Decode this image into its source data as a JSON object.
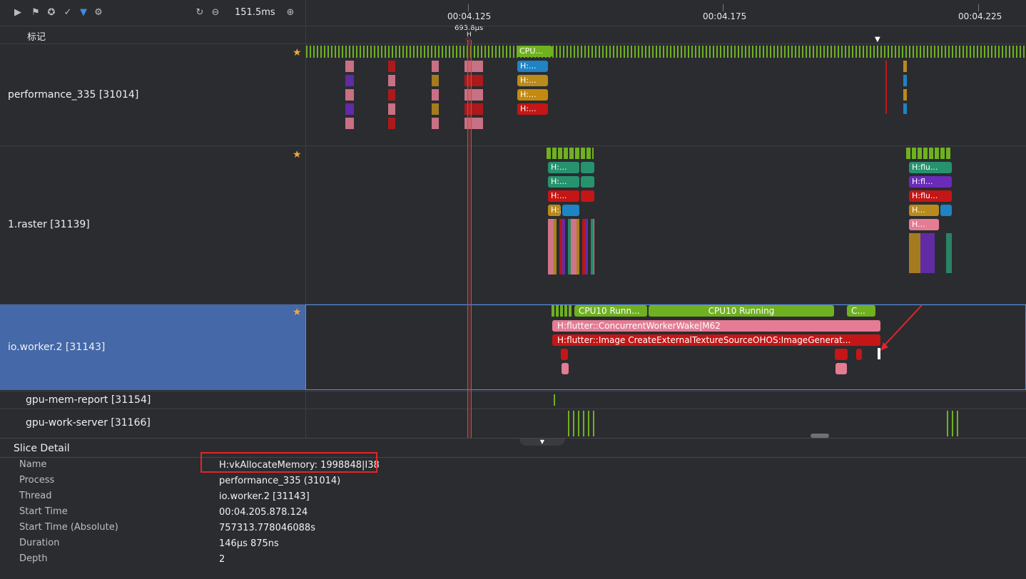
{
  "toolbar": {
    "duration": "151.5ms",
    "icons": [
      "play-icon",
      "flag-icon",
      "settings-globe-icon",
      "checklist-icon",
      "filter-icon",
      "gear-icon",
      "reset-zoom-icon",
      "zoom-out-icon",
      "zoom-in-icon"
    ]
  },
  "timeline": {
    "ticks": [
      "00:04.125",
      "00:04.175",
      "00:04.225"
    ],
    "marker_label": "693.8μs",
    "marker_letter": "H",
    "marker_row_label": "标记"
  },
  "tracks": {
    "performance": "performance_335 [31014]",
    "raster": "1.raster [31139]",
    "io_worker": "io.worker.2 [31143]",
    "gpu_mem": "gpu-mem-report [31154]",
    "gpu_work": "gpu-work-server [31166]"
  },
  "slices": {
    "perf_cpu": "CPU...",
    "perf_h1": "H:...",
    "perf_h2": "H:...",
    "perf_h3": "H:...",
    "perf_h4": "H:...",
    "raster_a1": "H:...",
    "raster_a2": "H:...",
    "raster_a3": "H:...",
    "raster_a4": "H:...",
    "raster_b1": "H:flu...",
    "raster_b2": "H:fl...",
    "raster_b3": "H:flu...",
    "raster_b4": "H...",
    "raster_b5": "H...",
    "io_cpu1": "CPU10 Runn...",
    "io_cpu2": "CPU10 Running",
    "io_cpu3": "C...",
    "io_wake": "H:flutter::ConcurrentWorkerWake|M62",
    "io_image": "H:flutter::Image CreateExternalTextureSourceOHOS:ImageGenerat..."
  },
  "detail": {
    "title": "Slice Detail",
    "rows": [
      {
        "label": "Name",
        "value": "H:vkAllocateMemory: 1998848|I38"
      },
      {
        "label": "Process",
        "value": "performance_335 (31014)"
      },
      {
        "label": "Thread",
        "value": "io.worker.2 [31143]"
      },
      {
        "label": "Start Time",
        "value": "00:04.205.878.124"
      },
      {
        "label": "Start Time (Absolute)",
        "value": "757313.778046088s"
      },
      {
        "label": "Duration",
        "value": "146μs 875ns"
      },
      {
        "label": "Depth",
        "value": "2"
      }
    ]
  },
  "colors": {
    "green": "#6fb120",
    "blue": "#1f83c4",
    "gold": "#b98a1c",
    "red": "#c41616",
    "teal": "#27936e",
    "pink": "#e47c93",
    "purple": "#6a2bb8",
    "selected": "#4468a8",
    "highlight_box": "#e0262b"
  }
}
